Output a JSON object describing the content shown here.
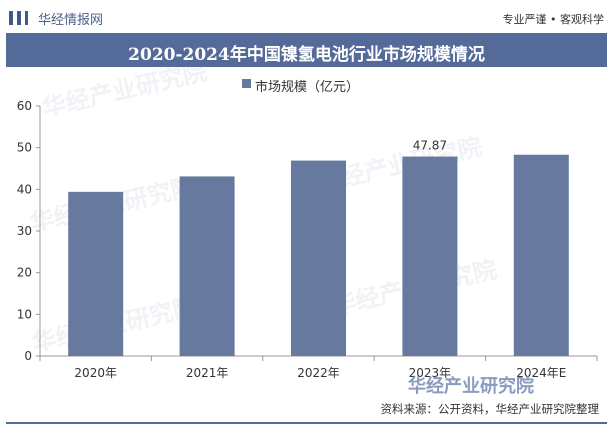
{
  "header": {
    "brand": "华经情报网",
    "slogan": "专业严谨 • 客观科学"
  },
  "footer": {
    "source": "资料来源：公开资料，华经产业研究院整理",
    "watermark": "华经产业研究院"
  },
  "colors": {
    "bar": "#67799f",
    "title_bg": "#546a99"
  },
  "chart_data": {
    "type": "bar",
    "title": "2020-2024年中国镍氢电池行业市场规模情况",
    "categories": [
      "2020年",
      "2021年",
      "2022年",
      "2023年",
      "2024年E"
    ],
    "series": [
      {
        "name": "市场规模（亿元）",
        "values": [
          39.4,
          43.1,
          46.9,
          47.87,
          48.3
        ]
      }
    ],
    "data_labels": {
      "3": "47.87"
    },
    "ylim": [
      0,
      60
    ],
    "yticks": [
      0,
      10,
      20,
      30,
      40,
      50,
      60
    ],
    "grid": false,
    "legend_position": "top"
  }
}
